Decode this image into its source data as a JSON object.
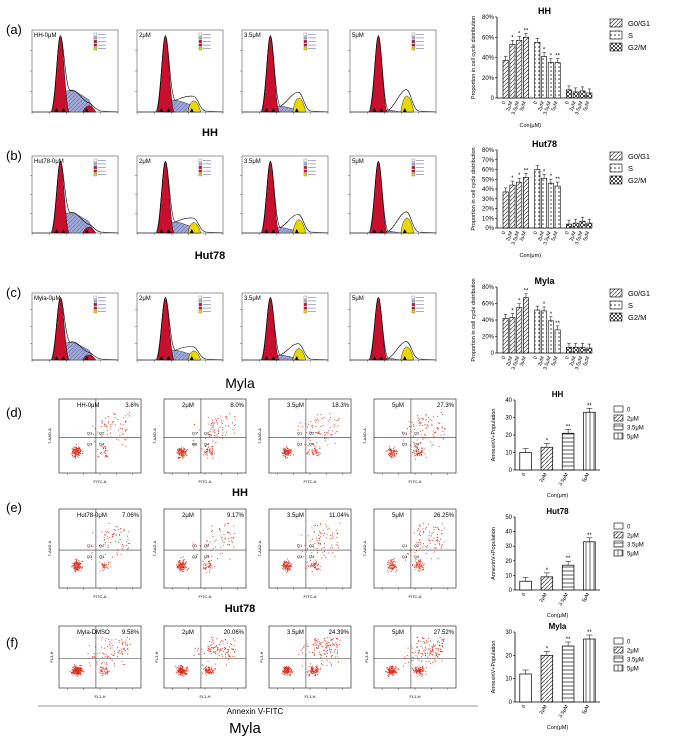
{
  "colors": {
    "red": "#c8102e",
    "flow_blue": "#9fa7d6",
    "yellow": "#e8d800",
    "dot_red": "#e0301e"
  },
  "rows": [
    {
      "id": "a",
      "label": "(a)",
      "panel_labels": [
        "HH-0μM",
        "2μM",
        "3.5μM",
        "5μM"
      ],
      "row_title": "HH",
      "chart_title": "HH",
      "legend": [
        "G0/G1",
        "S",
        "G2/M"
      ],
      "axis_y": "Proportion in cell cycle distribution",
      "axis_x": "Con(μM)"
    },
    {
      "id": "b",
      "label": "(b)",
      "panel_labels": [
        "Hut78-0μM",
        "2μM",
        "3.5μM",
        "5μM"
      ],
      "row_title": "Hut78",
      "chart_title": "Hut78",
      "legend": [
        "G0/G1",
        "S",
        "G2/M"
      ],
      "axis_y": "Proportion in cell cycle distribution",
      "axis_x": "Con(μm)"
    },
    {
      "id": "c",
      "label": "(c)",
      "panel_labels": [
        "Myla-0μM",
        "2μM",
        "3.5μM",
        "5μM"
      ],
      "row_title": "Myla",
      "chart_title": "Myla",
      "legend": [
        "G0/G1",
        "S",
        "G2/M"
      ],
      "axis_y": "Proportion in cell cycle distribution",
      "axis_x": ""
    },
    {
      "id": "d",
      "label": "(d)",
      "panel_labels": [
        "HH-0μM",
        "2μM",
        "3.5μM",
        "5μM"
      ],
      "percentages": [
        "3.6%",
        "8.0%",
        "18.3%",
        "27.3%"
      ],
      "row_title": "HH",
      "chart_title": "HH",
      "legend": [
        "0",
        "2μM",
        "3.5μM",
        "5μM"
      ],
      "axis_y": "AnnexinV+Population",
      "axis_x": "Con(μm)"
    },
    {
      "id": "e",
      "label": "(e)",
      "panel_labels": [
        "Hut78-0μM",
        "2μM",
        "3.5μM",
        "5μM"
      ],
      "percentages": [
        "7.06%",
        "9.17%",
        "11.04%",
        "26.25%"
      ],
      "row_title": "Hut78",
      "chart_title": "Hut78",
      "legend": [
        "0",
        "2μM",
        "3.5μM",
        "5μM"
      ],
      "axis_y": "AnnexinV+Population",
      "axis_x": "Con(μM)"
    },
    {
      "id": "f",
      "label": "(f)",
      "panel_labels": [
        "Myla-DMSO",
        "2μM",
        "3.5μM",
        "5μM"
      ],
      "percentages": [
        "9.58%",
        "20.06%",
        "24.39%",
        "27.52%"
      ],
      "row_title": "Myla",
      "chart_title": "Myla",
      "legend": [
        "0",
        "2μM",
        "3.5μM",
        "5μM"
      ],
      "axis_y": "AnnexinV+Population",
      "axis_x": "Con(μM)",
      "x_title": "Annexin V-FITC"
    }
  ],
  "chart_data": [
    {
      "type": "bar",
      "title": "HH",
      "categories": [
        "0",
        "2μM",
        "3.5μM",
        "5μM"
      ],
      "series": [
        {
          "name": "G0/G1",
          "values": [
            37,
            53,
            57,
            60
          ]
        },
        {
          "name": "S",
          "values": [
            55,
            41,
            35,
            35
          ]
        },
        {
          "name": "G2/M",
          "values": [
            8,
            6,
            7,
            5
          ]
        }
      ],
      "ylim": [
        0,
        80
      ],
      "yticks": [
        "0",
        "20%",
        "40%",
        "60%",
        "80%"
      ]
    },
    {
      "type": "bar",
      "title": "Hut78",
      "categories": [
        "0",
        "2μM",
        "3.5μM",
        "5μM"
      ],
      "series": [
        {
          "name": "G0/G1",
          "values": [
            37,
            44,
            47,
            52
          ]
        },
        {
          "name": "S",
          "values": [
            60,
            51,
            46,
            43
          ]
        },
        {
          "name": "G2/M",
          "values": [
            4,
            5,
            7,
            5
          ]
        }
      ],
      "ylim": [
        0,
        80
      ],
      "yticks": [
        "0%",
        "10%",
        "20%",
        "30%",
        "40%",
        "50%",
        "60%",
        "70%",
        "80%"
      ]
    },
    {
      "type": "bar",
      "title": "Myla",
      "categories": [
        "0",
        "2μM",
        "3.5μM",
        "5μM"
      ],
      "series": [
        {
          "name": "G0/G1",
          "values": [
            42,
            43,
            55,
            67
          ]
        },
        {
          "name": "S",
          "values": [
            52,
            51,
            39,
            28
          ]
        },
        {
          "name": "G2/M",
          "values": [
            7,
            7,
            7,
            6
          ]
        }
      ],
      "ylim": [
        0,
        80
      ],
      "yticks": [
        "0",
        "20%",
        "40%",
        "60%",
        "80%"
      ]
    },
    {
      "type": "bar",
      "title": "HH",
      "categories": [
        "0",
        "2μM",
        "3.5μM",
        "5μM"
      ],
      "values": [
        10,
        13,
        21,
        33
      ],
      "ylim": [
        0,
        40
      ],
      "yticks": [
        "0",
        "10",
        "20",
        "30",
        "40"
      ]
    },
    {
      "type": "bar",
      "title": "Hut78",
      "categories": [
        "0",
        "2μM",
        "3.5μM",
        "5μM"
      ],
      "values": [
        6,
        9,
        17,
        33
      ],
      "ylim": [
        0,
        50
      ],
      "yticks": [
        "0",
        "10",
        "20",
        "30",
        "40",
        "50"
      ]
    },
    {
      "type": "bar",
      "title": "Myla",
      "categories": [
        "0",
        "2μM",
        "3.5μM",
        "5μM"
      ],
      "values": [
        12,
        20,
        24,
        27
      ],
      "ylim": [
        0,
        30
      ],
      "yticks": [
        "0",
        "10",
        "20",
        "30"
      ]
    }
  ]
}
